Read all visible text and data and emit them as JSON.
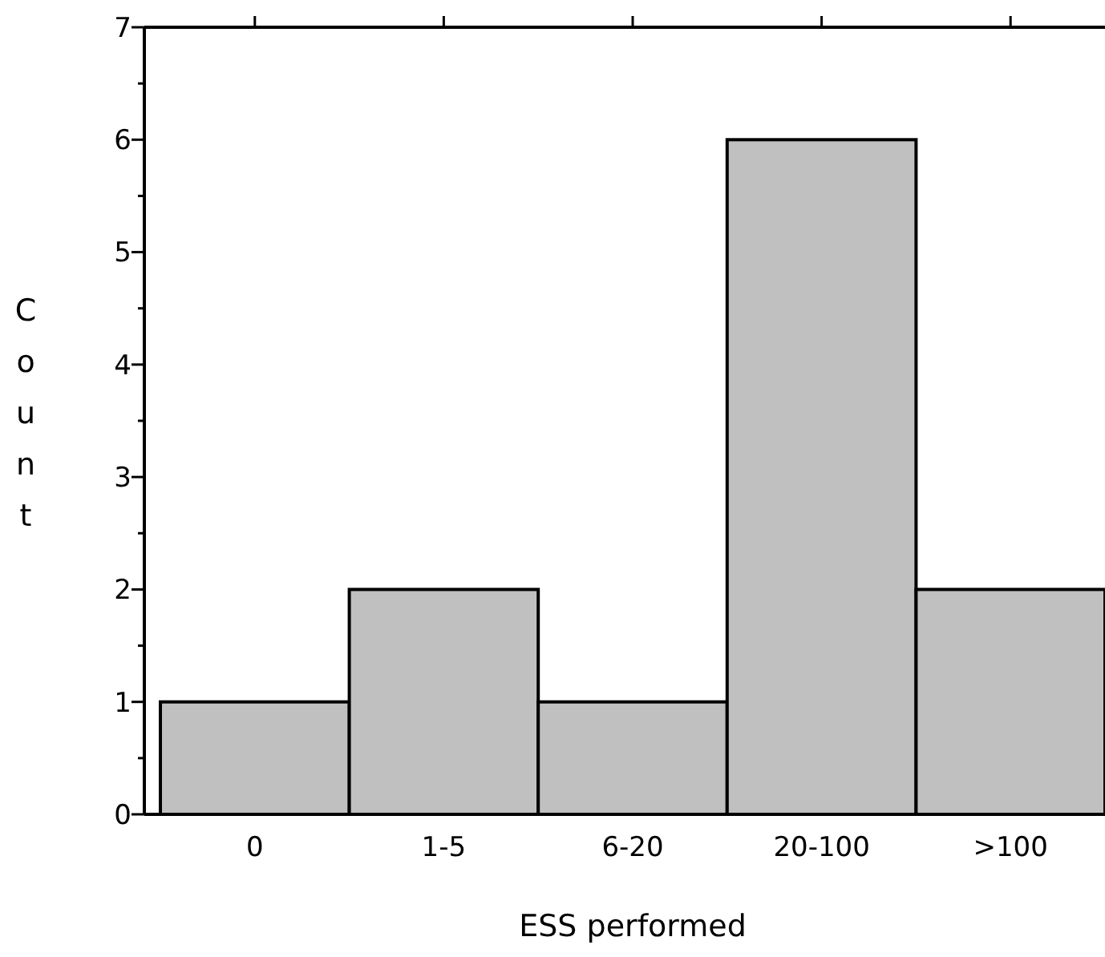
{
  "chart_data": {
    "type": "bar",
    "xlabel": "ESS performed",
    "ylabel": "Count",
    "categories": [
      "0",
      "1-5",
      "6-20",
      "20-100",
      ">100"
    ],
    "values": [
      1,
      2,
      1,
      6,
      2
    ],
    "color": "#c0c0c0",
    "ylim": [
      0,
      7
    ],
    "yticks": [
      0,
      {
        "value": 0.5,
        "label": null
      },
      1,
      {
        "value": 1.5,
        "label": null
      },
      2,
      {
        "value": 2.5,
        "label": null
      },
      3,
      {
        "value": 3.5,
        "label": null
      },
      4,
      {
        "value": 4.5,
        "label": null
      },
      5,
      {
        "value": 5.5,
        "label": null
      },
      6,
      {
        "value": 6.5,
        "label": null
      },
      7
    ],
    "grid": false
  }
}
